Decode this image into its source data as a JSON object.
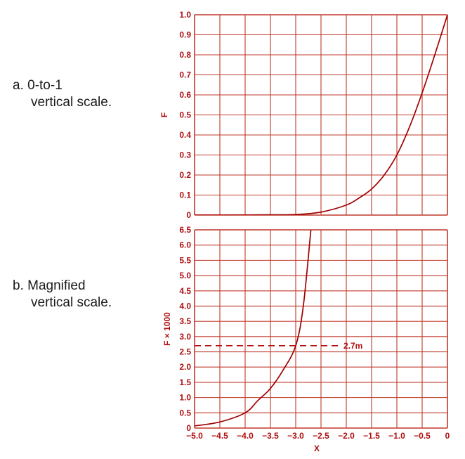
{
  "captions": {
    "a": {
      "line1": "a. 0-to-1",
      "line2": "vertical scale."
    },
    "b": {
      "line1": "b. Magnified",
      "line2": "vertical scale."
    }
  },
  "colors": {
    "ink": "#b01010",
    "grid": "#c0392b",
    "curve": "#a00000",
    "caption": "#1a1a1a"
  },
  "chart_data": [
    {
      "type": "line",
      "title": "",
      "xlabel": "",
      "ylabel": "F",
      "xlim": [
        -5.0,
        0
      ],
      "ylim": [
        0,
        1.0
      ],
      "x_ticks": [],
      "y_ticks": [
        "0",
        "0.1",
        "0.2",
        "0.3",
        "0.4",
        "0.5",
        "0.6",
        "0.7",
        "0.8",
        "0.9",
        "1.0"
      ],
      "grid": true,
      "series": [
        {
          "x": [
            -5.0,
            -4.5,
            -4.0,
            -3.5,
            -3.0,
            -2.5,
            -2.0,
            -1.75,
            -1.5,
            -1.25,
            -1.0,
            -0.75,
            -0.5,
            -0.25,
            0
          ],
          "values": [
            7e-05,
            0.0002,
            0.0005,
            0.0013,
            0.0027,
            0.015,
            0.05,
            0.085,
            0.13,
            0.2,
            0.3,
            0.44,
            0.61,
            0.8,
            1.0
          ]
        }
      ]
    },
    {
      "type": "line",
      "title": "",
      "xlabel": "X",
      "ylabel": "F × 1000",
      "xlim": [
        -5.0,
        0
      ],
      "ylim": [
        0,
        6.5
      ],
      "x_ticks": [
        "−5.0",
        "−4.5",
        "−4.0",
        "−3.5",
        "−3.0",
        "−2.5",
        "−2.0",
        "−1.5",
        "−1.0",
        "−0.5",
        "0"
      ],
      "y_ticks": [
        "0",
        "0.5",
        "1.0",
        "1.5",
        "2.0",
        "2.5",
        "3.0",
        "3.5",
        "4.0",
        "4.5",
        "5.0",
        "5.5",
        "6.0",
        "6.5"
      ],
      "grid": true,
      "series": [
        {
          "x": [
            -5.0,
            -4.5,
            -4.0,
            -3.75,
            -3.5,
            -3.25,
            -3.0,
            -2.85,
            -2.7
          ],
          "values": [
            0.07,
            0.2,
            0.5,
            0.9,
            1.3,
            1.9,
            2.7,
            4.0,
            6.5
          ]
        }
      ],
      "annotations": [
        {
          "text": "2.7m",
          "y": 2.7,
          "style": "dashed horizontal line"
        }
      ]
    }
  ]
}
